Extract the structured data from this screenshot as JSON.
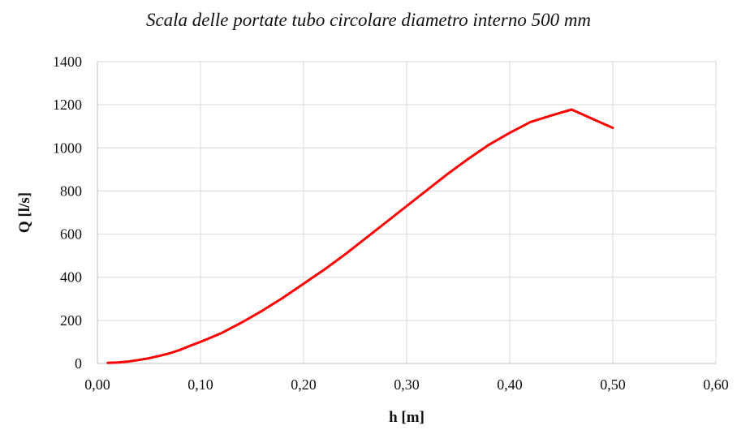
{
  "chart_data": {
    "type": "line",
    "title": "Scala delle portate tubo circolare diametro interno 500 mm",
    "xlabel": "h [m]",
    "ylabel": "Q [l/s]",
    "xlim": [
      0,
      0.6
    ],
    "ylim": [
      0,
      1400
    ],
    "x_ticks": [
      "0,00",
      "0,10",
      "0,20",
      "0,30",
      "0,40",
      "0,50",
      "0,60"
    ],
    "y_ticks": [
      "0",
      "200",
      "400",
      "600",
      "800",
      "1000",
      "1200",
      "1400"
    ],
    "x_tick_values": [
      0,
      0.1,
      0.2,
      0.3,
      0.4,
      0.5,
      0.6
    ],
    "y_tick_values": [
      0,
      200,
      400,
      600,
      800,
      1000,
      1200,
      1400
    ],
    "grid": true,
    "legend": "none",
    "series": [
      {
        "color": "#ff0000",
        "x": [
          0.01,
          0.02,
          0.03,
          0.04,
          0.05,
          0.06,
          0.07,
          0.08,
          0.09,
          0.1,
          0.12,
          0.14,
          0.16,
          0.18,
          0.2,
          0.22,
          0.24,
          0.26,
          0.28,
          0.3,
          0.32,
          0.34,
          0.36,
          0.38,
          0.4,
          0.42,
          0.44,
          0.46,
          0.48,
          0.5
        ],
        "y": [
          3,
          5,
          9,
          16,
          24,
          35,
          47,
          63,
          82,
          100,
          140,
          190,
          245,
          305,
          370,
          435,
          505,
          580,
          655,
          730,
          805,
          880,
          950,
          1015,
          1070,
          1120,
          1150,
          1178,
          1135,
          1093
        ]
      }
    ]
  }
}
